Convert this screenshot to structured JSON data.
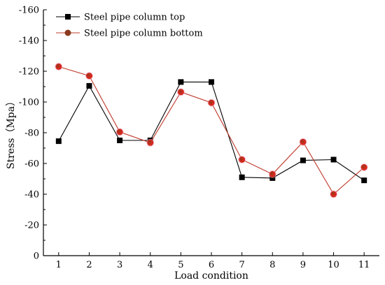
{
  "chart_data": {
    "type": "line",
    "x": [
      1,
      2,
      3,
      4,
      5,
      6,
      7,
      8,
      9,
      10,
      11
    ],
    "xlabel": "Load condition",
    "ylabel": "Stress（Mpa）",
    "ylim": [
      0,
      -160
    ],
    "y_ticks": [
      0,
      -20,
      -40,
      -60,
      -80,
      -100,
      -120,
      -140,
      -160
    ],
    "y_tick_labels": [
      "0",
      "-20",
      "-40",
      "-60",
      "-80",
      "-100",
      "-120",
      "-140",
      "-160"
    ],
    "x_tick_labels": [
      "1",
      "2",
      "3",
      "4",
      "5",
      "6",
      "7",
      "8",
      "9",
      "10",
      "11"
    ],
    "legend_position": "top-left",
    "grid": false,
    "series": [
      {
        "name": "Steel pipe column top",
        "values": [
          -74.5,
          -110.5,
          -75,
          -75,
          -113,
          -113,
          -51,
          -50.5,
          -62,
          -62.5,
          -49
        ],
        "color": "#000000",
        "marker": "square",
        "marker_color": "#000000"
      },
      {
        "name": "Steel pipe column bottom",
        "values": [
          -123,
          -117,
          -80.5,
          -73.5,
          -106.5,
          -99.5,
          -62.5,
          -53,
          -74,
          -40,
          -57.5
        ],
        "color": "#c0392b",
        "marker": "circle",
        "marker_color": "#8b3a1e"
      }
    ]
  }
}
